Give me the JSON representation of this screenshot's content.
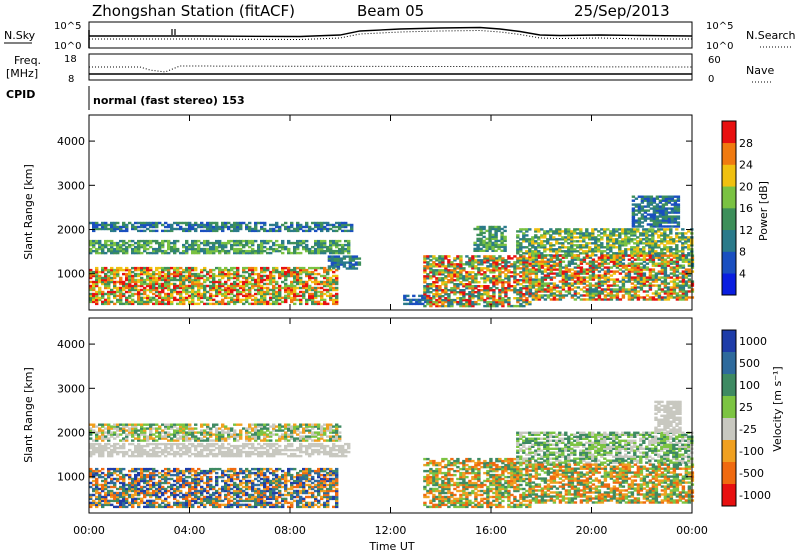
{
  "header": {
    "station": "Zhongshan Station (fitACF)",
    "beam": "Beam 05",
    "date": "25/Sep/2013"
  },
  "top_panels": {
    "nsky_label": "N.Sky",
    "nsky_ticks": [
      "10^5",
      "10^0"
    ],
    "nsearch_label": "N.Search",
    "nsearch_ticks": [
      "10^5",
      "10^0"
    ],
    "freq_label": "Freq.",
    "freq_unit": "[MHz]",
    "freq_ticks": [
      "18",
      "8"
    ],
    "nave_label": "Nave",
    "nave_ticks": [
      "60",
      "0"
    ],
    "cpid_label": "CPID",
    "cpid_text": "normal (fast stereo) 153"
  },
  "chart_data": [
    {
      "type": "heatmap",
      "name": "power",
      "ylabel": "Slant Range [km]",
      "yticks": [
        "4000",
        "3000",
        "2000",
        "1000"
      ],
      "ylim": [
        180,
        4590
      ],
      "colorbar": {
        "label": "Power [dB]",
        "ticks": [
          "28",
          "24",
          "20",
          "16",
          "12",
          "8",
          "4"
        ],
        "range": [
          0,
          32
        ],
        "colors": [
          "#0a1ee0",
          "#1a4fc0",
          "#2a7a8a",
          "#3d8f5a",
          "#7ac242",
          "#f0c010",
          "#f07a10",
          "#e81010"
        ]
      },
      "regions": [
        {
          "t0": 0.0,
          "t1": 10.3,
          "r0": 1450,
          "r1": 1750,
          "levels": [
            2,
            3,
            4
          ]
        },
        {
          "t0": 0.0,
          "t1": 10.5,
          "r0": 1950,
          "r1": 2150,
          "levels": [
            1,
            2,
            3
          ]
        },
        {
          "t0": 0.0,
          "t1": 9.8,
          "r0": 300,
          "r1": 1150,
          "levels": [
            3,
            4,
            5,
            6,
            7
          ]
        },
        {
          "t0": 9.5,
          "t1": 10.8,
          "r0": 1100,
          "r1": 1400,
          "levels": [
            1,
            2,
            3
          ]
        },
        {
          "t0": 12.5,
          "t1": 13.5,
          "r0": 300,
          "r1": 500,
          "levels": [
            1,
            2
          ]
        },
        {
          "t0": 13.3,
          "t1": 17.5,
          "r0": 250,
          "r1": 1400,
          "levels": [
            2,
            3,
            4,
            5,
            6,
            7
          ]
        },
        {
          "t0": 15.3,
          "t1": 16.6,
          "r0": 1500,
          "r1": 2050,
          "levels": [
            2,
            3,
            4
          ]
        },
        {
          "t0": 17.0,
          "t1": 24.0,
          "r0": 1400,
          "r1": 2000,
          "levels": [
            2,
            3,
            4,
            5
          ]
        },
        {
          "t0": 17.5,
          "t1": 24.0,
          "r0": 400,
          "r1": 1400,
          "levels": [
            2,
            3,
            4,
            5,
            6,
            7
          ]
        },
        {
          "t0": 21.6,
          "t1": 23.4,
          "r0": 2050,
          "r1": 2750,
          "levels": [
            1,
            2,
            3
          ]
        }
      ]
    },
    {
      "type": "heatmap",
      "name": "velocity",
      "ylabel": "Slant Range [km]",
      "yticks": [
        "4000",
        "3000",
        "2000",
        "1000"
      ],
      "ylim": [
        180,
        4590
      ],
      "xlabel": "Time UT",
      "xticks": [
        "00:00",
        "04:00",
        "08:00",
        "12:00",
        "16:00",
        "20:00",
        "00:00"
      ],
      "xlim": [
        0,
        24
      ],
      "colorbar": {
        "label": "Velocity [m s⁻¹]",
        "ticks": [
          "1000",
          "500",
          "100",
          "25",
          "-25",
          "-100",
          "-500",
          "-1000"
        ],
        "colors": [
          "#1e3ca8",
          "#2e6a9c",
          "#3e8a62",
          "#7cc442",
          "#c8c8c0",
          "#f0a020",
          "#f06a10",
          "#e81010"
        ]
      },
      "regions": [
        {
          "t0": 0.0,
          "t1": 10.3,
          "r0": 1450,
          "r1": 1750,
          "levels": [
            4
          ]
        },
        {
          "t0": 0.0,
          "t1": 10.0,
          "r0": 1800,
          "r1": 2200,
          "levels": [
            2,
            3,
            4,
            5
          ]
        },
        {
          "t0": 0.0,
          "t1": 9.8,
          "r0": 300,
          "r1": 1200,
          "levels": [
            0,
            1,
            2,
            5,
            6
          ]
        },
        {
          "t0": 13.3,
          "t1": 17.5,
          "r0": 300,
          "r1": 1400,
          "levels": [
            2,
            3,
            5,
            6
          ]
        },
        {
          "t0": 17.0,
          "t1": 24.0,
          "r0": 1300,
          "r1": 2000,
          "levels": [
            2,
            3,
            4
          ]
        },
        {
          "t0": 17.5,
          "t1": 24.0,
          "r0": 400,
          "r1": 1300,
          "levels": [
            2,
            3,
            5,
            6
          ]
        },
        {
          "t0": 22.5,
          "t1": 23.5,
          "r0": 2000,
          "r1": 2700,
          "levels": [
            4
          ]
        }
      ]
    }
  ]
}
